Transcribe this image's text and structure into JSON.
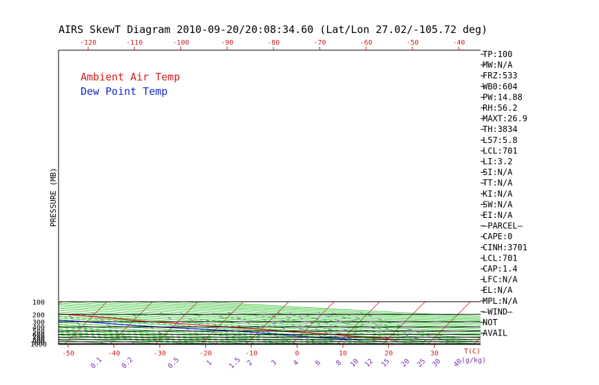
{
  "title": "AIRS SkewT Diagram 2010-09-20/20:08:34.60 (Lat/Lon 27.02/-105.72 deg)",
  "colors": {
    "ambient": "#d21e1e",
    "dewpoint": "#1428c8",
    "isotherm": "#e02020",
    "dry_adiabat": "#22c022",
    "moist_adiabat": "#30c830",
    "mixing_ratio": "#7a2fb0",
    "tick_red": "#d21e1e",
    "tick_purple": "#7a2fb0"
  },
  "chart_data": {
    "type": "line",
    "subtype": "skew-t log-p",
    "ylabel": "PRESSURE (MB)",
    "xlabel": "T(C)",
    "mixing_ratio_unit": "(g/kg)",
    "pressure_ticks": [
      1000,
      900,
      800,
      700,
      600,
      500,
      400,
      300,
      200,
      100
    ],
    "bottom_temp_ticks": [
      -50,
      -40,
      -30,
      -20,
      -10,
      0,
      10,
      20,
      30
    ],
    "top_temp_ticks": [
      -120,
      -110,
      -100,
      -90,
      -80,
      -70,
      -60,
      -50,
      -40
    ],
    "mixing_ratio_ticks": [
      "0.1",
      "0.2",
      "0.5",
      "1",
      "1.5",
      "2",
      "3",
      "4",
      "6",
      "8",
      "10",
      "12",
      "15",
      "20",
      "25",
      "30",
      "40"
    ],
    "legend": [
      {
        "name": "Ambient Air Temp",
        "color": "#d21e1e"
      },
      {
        "name": "Dew Point Temp",
        "color": "#1428c8"
      }
    ],
    "series": [
      {
        "name": "Ambient Air Temp",
        "points": [
          {
            "p": 812,
            "t": 22.7
          },
          {
            "p": 740,
            "t": 18.0
          },
          {
            "p": 700,
            "t": 14.5
          },
          {
            "p": 640,
            "t": 9.5
          },
          {
            "p": 560,
            "t": 3.0
          },
          {
            "p": 500,
            "t": -5.0
          },
          {
            "p": 450,
            "t": -11.0
          },
          {
            "p": 400,
            "t": -18.5
          },
          {
            "p": 350,
            "t": -26.0
          },
          {
            "p": 300,
            "t": -36.0
          },
          {
            "p": 250,
            "t": -44.5
          },
          {
            "p": 200,
            "t": -56.5
          },
          {
            "p": 160,
            "t": -66.0
          },
          {
            "p": 150,
            "t": -70.0
          },
          {
            "p": 120,
            "t": -77.5
          },
          {
            "p": 100,
            "t": -81.5
          }
        ]
      },
      {
        "name": "Dew Point Temp",
        "points": [
          {
            "p": 812,
            "t": 14.5
          },
          {
            "p": 740,
            "t": 8.0
          },
          {
            "p": 700,
            "t": 3.0
          },
          {
            "p": 640,
            "t": -2.0
          },
          {
            "p": 560,
            "t": -9.0
          },
          {
            "p": 500,
            "t": -15.0
          },
          {
            "p": 450,
            "t": -23.0
          },
          {
            "p": 400,
            "t": -33.5
          },
          {
            "p": 350,
            "t": -42.0
          },
          {
            "p": 300,
            "t": -50.0
          },
          {
            "p": 250,
            "t": -65.0
          },
          {
            "p": 200,
            "t": -79.0
          },
          {
            "p": 160,
            "t": -86.0
          },
          {
            "p": 150,
            "t": -88.0
          },
          {
            "p": 120,
            "t": -92.0
          },
          {
            "p": 100,
            "t": -92.0
          }
        ]
      }
    ],
    "side_panel": [
      "TP:100",
      "MW:N/A",
      "FRZ:533",
      "WB0:604",
      "PW:14.88",
      "RH:56.2",
      "MAXT:26.9",
      "TH:3834",
      "L57:5.8",
      "LCL:701",
      "LI:3.2",
      "SI:N/A",
      "TT:N/A",
      "KI:N/A",
      "SW:N/A",
      "EI:N/A",
      "–PARCEL–",
      "CAPE:0",
      "CINH:3701",
      "LCL:701",
      "CAP:1.4",
      "LFC:N/A",
      "EL:N/A",
      "MPL:N/A",
      "–WIND–",
      "NOT",
      "AVAIL"
    ]
  }
}
